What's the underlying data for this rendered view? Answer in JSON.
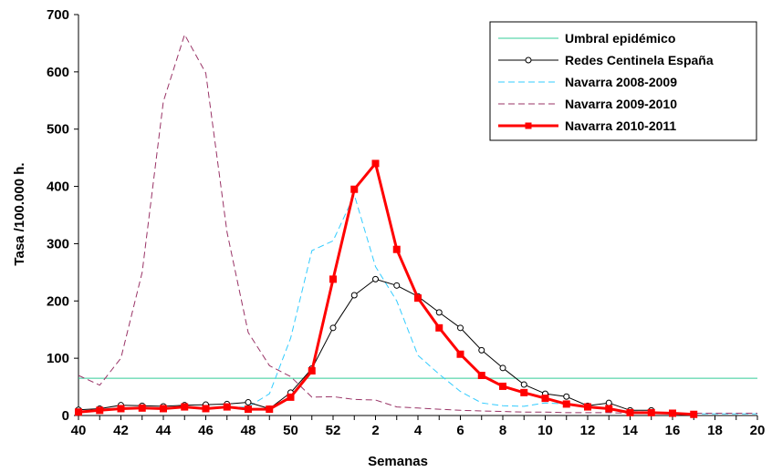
{
  "chart_data": {
    "type": "line",
    "xlabel": "Semanas",
    "ylabel": "Tasa /100.000 h.",
    "ylim": [
      0,
      700
    ],
    "yticks": [
      0,
      100,
      200,
      300,
      400,
      500,
      600,
      700
    ],
    "grid": false,
    "legend_position": "top-right",
    "weeks": [
      "40",
      "41",
      "42",
      "43",
      "44",
      "45",
      "46",
      "47",
      "48",
      "49",
      "50",
      "51",
      "52",
      "1",
      "2",
      "3",
      "4",
      "5",
      "6",
      "7",
      "8",
      "9",
      "10",
      "11",
      "12",
      "13",
      "14",
      "15",
      "16",
      "17",
      "18",
      "19",
      "20"
    ],
    "x_tick_labels": [
      "40",
      "42",
      "44",
      "46",
      "48",
      "50",
      "52",
      "2",
      "4",
      "6",
      "8",
      "10",
      "12",
      "14",
      "16",
      "18",
      "20"
    ],
    "series": [
      {
        "name": "Umbral epidémico",
        "color": "#33CC99",
        "style": "solid",
        "marker": "none",
        "values": [
          65,
          65,
          65,
          65,
          65,
          65,
          65,
          65,
          65,
          65,
          65,
          65,
          65,
          65,
          65,
          65,
          65,
          65,
          65,
          65,
          65,
          65,
          65,
          65,
          65,
          65,
          65,
          65,
          65,
          65,
          65,
          65,
          65
        ]
      },
      {
        "name": "Redes Centinela España",
        "color": "#000000",
        "style": "solid",
        "marker": "circle",
        "values": [
          10,
          12,
          18,
          17,
          16,
          18,
          19,
          20,
          23,
          12,
          40,
          82,
          153,
          210,
          238,
          227,
          208,
          180,
          153,
          114,
          83,
          54,
          38,
          33,
          17,
          22,
          9,
          9,
          null,
          null,
          null,
          null,
          null
        ]
      },
      {
        "name": "Navarra 2008-2009",
        "color": "#33CCFF",
        "style": "dashed",
        "marker": "none",
        "values": [
          7,
          9,
          11,
          12,
          12,
          13,
          13,
          14,
          15,
          38,
          135,
          288,
          305,
          385,
          260,
          200,
          105,
          72,
          42,
          22,
          17,
          16,
          22,
          20,
          15,
          11,
          7,
          6,
          4,
          3,
          3,
          3,
          3
        ]
      },
      {
        "name": "Navarra 2009-2010",
        "color": "#993366",
        "style": "dashed",
        "marker": "none",
        "values": [
          70,
          53,
          100,
          250,
          548,
          665,
          598,
          320,
          145,
          87,
          68,
          32,
          33,
          28,
          27,
          15,
          13,
          11,
          9,
          8,
          7,
          6,
          6,
          5,
          5,
          5,
          4,
          4,
          4,
          4,
          4,
          4,
          4
        ]
      },
      {
        "name": "Navarra 2010-2011",
        "color": "#FF0000",
        "style": "solid",
        "marker": "square",
        "values": [
          6,
          9,
          12,
          13,
          12,
          15,
          12,
          15,
          11,
          11,
          32,
          78,
          238,
          395,
          440,
          290,
          205,
          153,
          107,
          70,
          51,
          40,
          30,
          20,
          15,
          12,
          5,
          5,
          4,
          2,
          null,
          null,
          null
        ]
      }
    ]
  }
}
